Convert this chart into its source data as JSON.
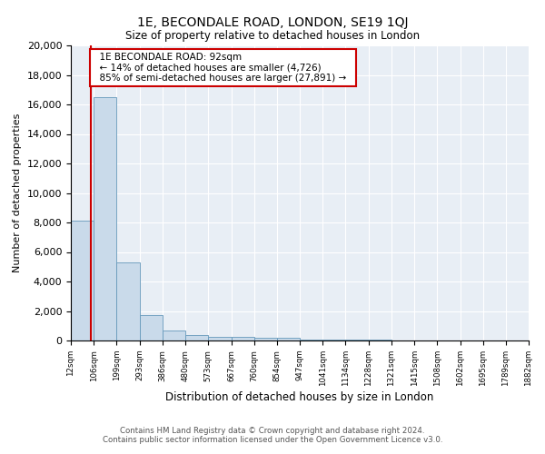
{
  "title": "1E, BECONDALE ROAD, LONDON, SE19 1QJ",
  "subtitle": "Size of property relative to detached houses in London",
  "xlabel": "Distribution of detached houses by size in London",
  "ylabel": "Number of detached properties",
  "bin_edges": [
    12,
    106,
    199,
    293,
    386,
    480,
    573,
    667,
    760,
    854,
    947,
    1041,
    1134,
    1228,
    1321,
    1415,
    1508,
    1602,
    1695,
    1789,
    1882
  ],
  "bar_heights": [
    8100,
    16500,
    5300,
    1750,
    700,
    350,
    250,
    220,
    200,
    170,
    50,
    50,
    40,
    35,
    30,
    20,
    15,
    10,
    8,
    5
  ],
  "bar_color": "#c9daea",
  "bar_edge_color": "#6699bb",
  "property_size": 92,
  "vline_color": "#cc0000",
  "ylim": [
    0,
    20000
  ],
  "yticks": [
    0,
    2000,
    4000,
    6000,
    8000,
    10000,
    12000,
    14000,
    16000,
    18000,
    20000
  ],
  "annotation_title": "1E BECONDALE ROAD: 92sqm",
  "annotation_line1": "← 14% of detached houses are smaller (4,726)",
  "annotation_line2": "85% of semi-detached houses are larger (27,891) →",
  "annotation_box_color": "#ffffff",
  "annotation_box_edge": "#cc0000",
  "background_color": "#e8eef5",
  "footer_line1": "Contains HM Land Registry data © Crown copyright and database right 2024.",
  "footer_line2": "Contains public sector information licensed under the Open Government Licence v3.0."
}
